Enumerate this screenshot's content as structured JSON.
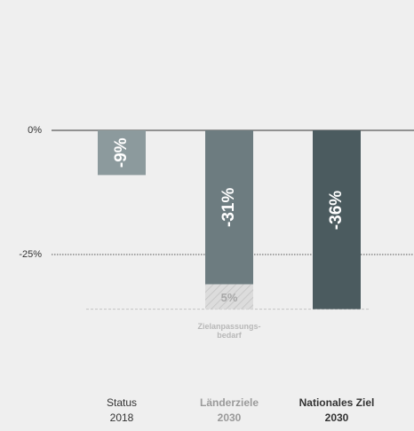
{
  "chart_data": {
    "type": "bar",
    "categories": [
      [
        "Status",
        "2018"
      ],
      [
        "Länderziele",
        "2030"
      ],
      [
        "Nationales Ziel",
        "2030"
      ]
    ],
    "values": [
      -9,
      -31,
      -36
    ],
    "value_labels": [
      "-9%",
      "-31%",
      "-36%"
    ],
    "colors": [
      "#8c9a9d",
      "#6d7c80",
      "#4b5b5f"
    ],
    "gap_values": [
      null,
      -5,
      null
    ],
    "gap_labels": [
      null,
      "5%",
      null
    ],
    "gap_annotation": [
      "Zielanpassungs-",
      "bedarf"
    ],
    "ylim": [
      -50,
      25
    ],
    "yticks": [
      {
        "value": 0,
        "label": "0%"
      },
      {
        "value": -25,
        "label": "-25%"
      }
    ]
  }
}
